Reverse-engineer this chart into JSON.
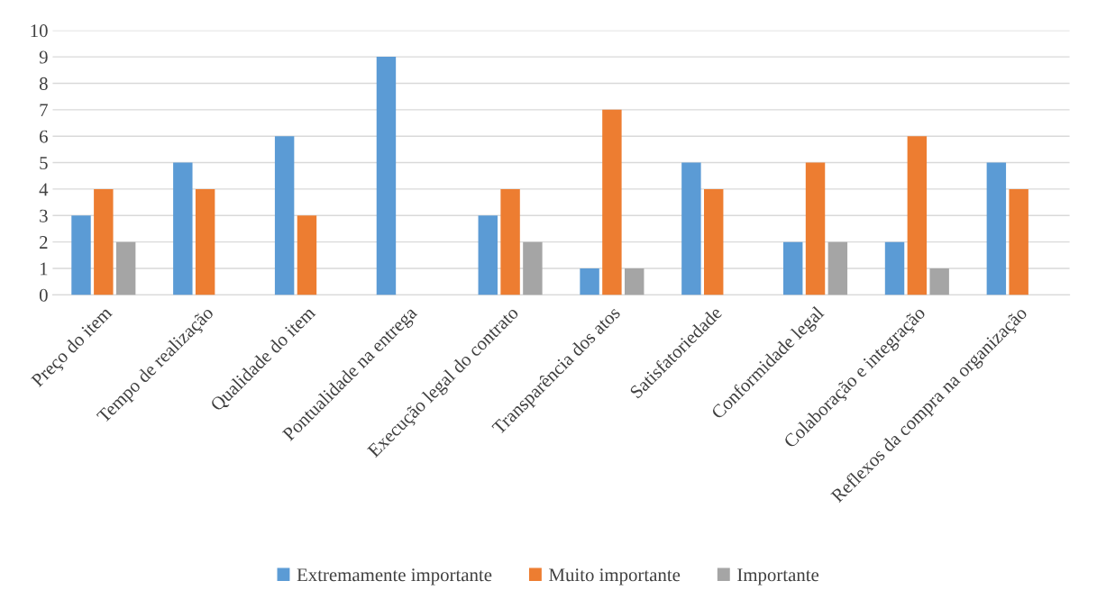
{
  "chart_data": {
    "type": "bar",
    "categories": [
      "Preço do item",
      "Tempo de realização",
      "Qualidade do item",
      "Pontualidade na entrega",
      "Execução legal do contrato",
      "Transparência dos atos",
      "Satisfatoriedade",
      "Conformidade legal",
      "Colaboração e integração",
      "Reflexos da compra na organização"
    ],
    "series": [
      {
        "name": "Extremamente importante",
        "color": "#5b9bd5",
        "values": [
          3,
          5,
          6,
          9,
          3,
          1,
          5,
          2,
          2,
          5
        ]
      },
      {
        "name": "Muito importante",
        "color": "#ed7d31",
        "values": [
          4,
          4,
          3,
          null,
          4,
          7,
          4,
          5,
          6,
          4
        ]
      },
      {
        "name": "Importante",
        "color": "#a5a5a5",
        "values": [
          2,
          null,
          null,
          null,
          2,
          1,
          null,
          2,
          1,
          null
        ]
      }
    ],
    "ylim": [
      0,
      10
    ],
    "yticks": [
      0,
      1,
      2,
      3,
      4,
      5,
      6,
      7,
      8,
      9,
      10
    ],
    "grid": "y",
    "legend": "bottom"
  }
}
